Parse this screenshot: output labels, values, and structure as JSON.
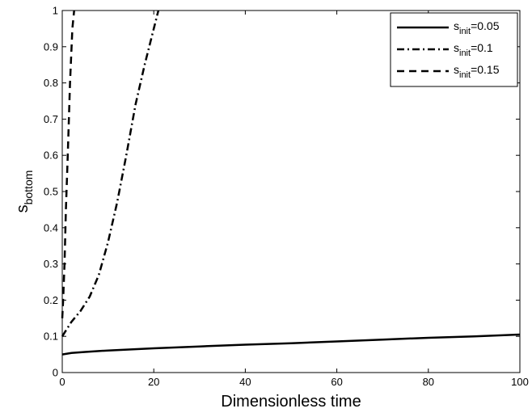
{
  "chart_data": {
    "type": "line",
    "title": "",
    "xlabel": "Dimensionless time",
    "ylabel": "s",
    "ylabel_sub": "bottom",
    "xlim": [
      0,
      100
    ],
    "ylim": [
      0,
      1
    ],
    "xticks": [
      0,
      20,
      40,
      60,
      80,
      100
    ],
    "yticks": [
      0,
      0.1,
      0.2,
      0.3,
      0.4,
      0.5,
      0.6,
      0.7,
      0.8,
      0.9,
      1
    ],
    "grid": false,
    "legend_position": "top-right",
    "series": [
      {
        "name_main": "s",
        "name_sub": "init",
        "name_suffix": "=0.05",
        "style": "solid",
        "x": [
          0,
          2,
          5,
          10,
          20,
          30,
          40,
          50,
          60,
          70,
          80,
          90,
          100
        ],
        "y": [
          0.05,
          0.054,
          0.057,
          0.061,
          0.067,
          0.072,
          0.077,
          0.081,
          0.086,
          0.091,
          0.096,
          0.1,
          0.105
        ]
      },
      {
        "name_main": "s",
        "name_sub": "init",
        "name_suffix": "=0.1",
        "style": "dashdot",
        "x": [
          0,
          0.5,
          1,
          2,
          4,
          6,
          8,
          10,
          12,
          14,
          16,
          18,
          20,
          21
        ],
        "y": [
          0.1,
          0.11,
          0.12,
          0.14,
          0.17,
          0.21,
          0.27,
          0.36,
          0.47,
          0.6,
          0.74,
          0.85,
          0.95,
          1.0
        ]
      },
      {
        "name_main": "s",
        "name_sub": "init",
        "name_suffix": "=0.15",
        "style": "dashed",
        "x": [
          0,
          0.2,
          0.5,
          0.8,
          1.2,
          1.7,
          2.2,
          2.6
        ],
        "y": [
          0.15,
          0.2,
          0.3,
          0.45,
          0.6,
          0.8,
          0.95,
          1.0
        ]
      }
    ]
  }
}
